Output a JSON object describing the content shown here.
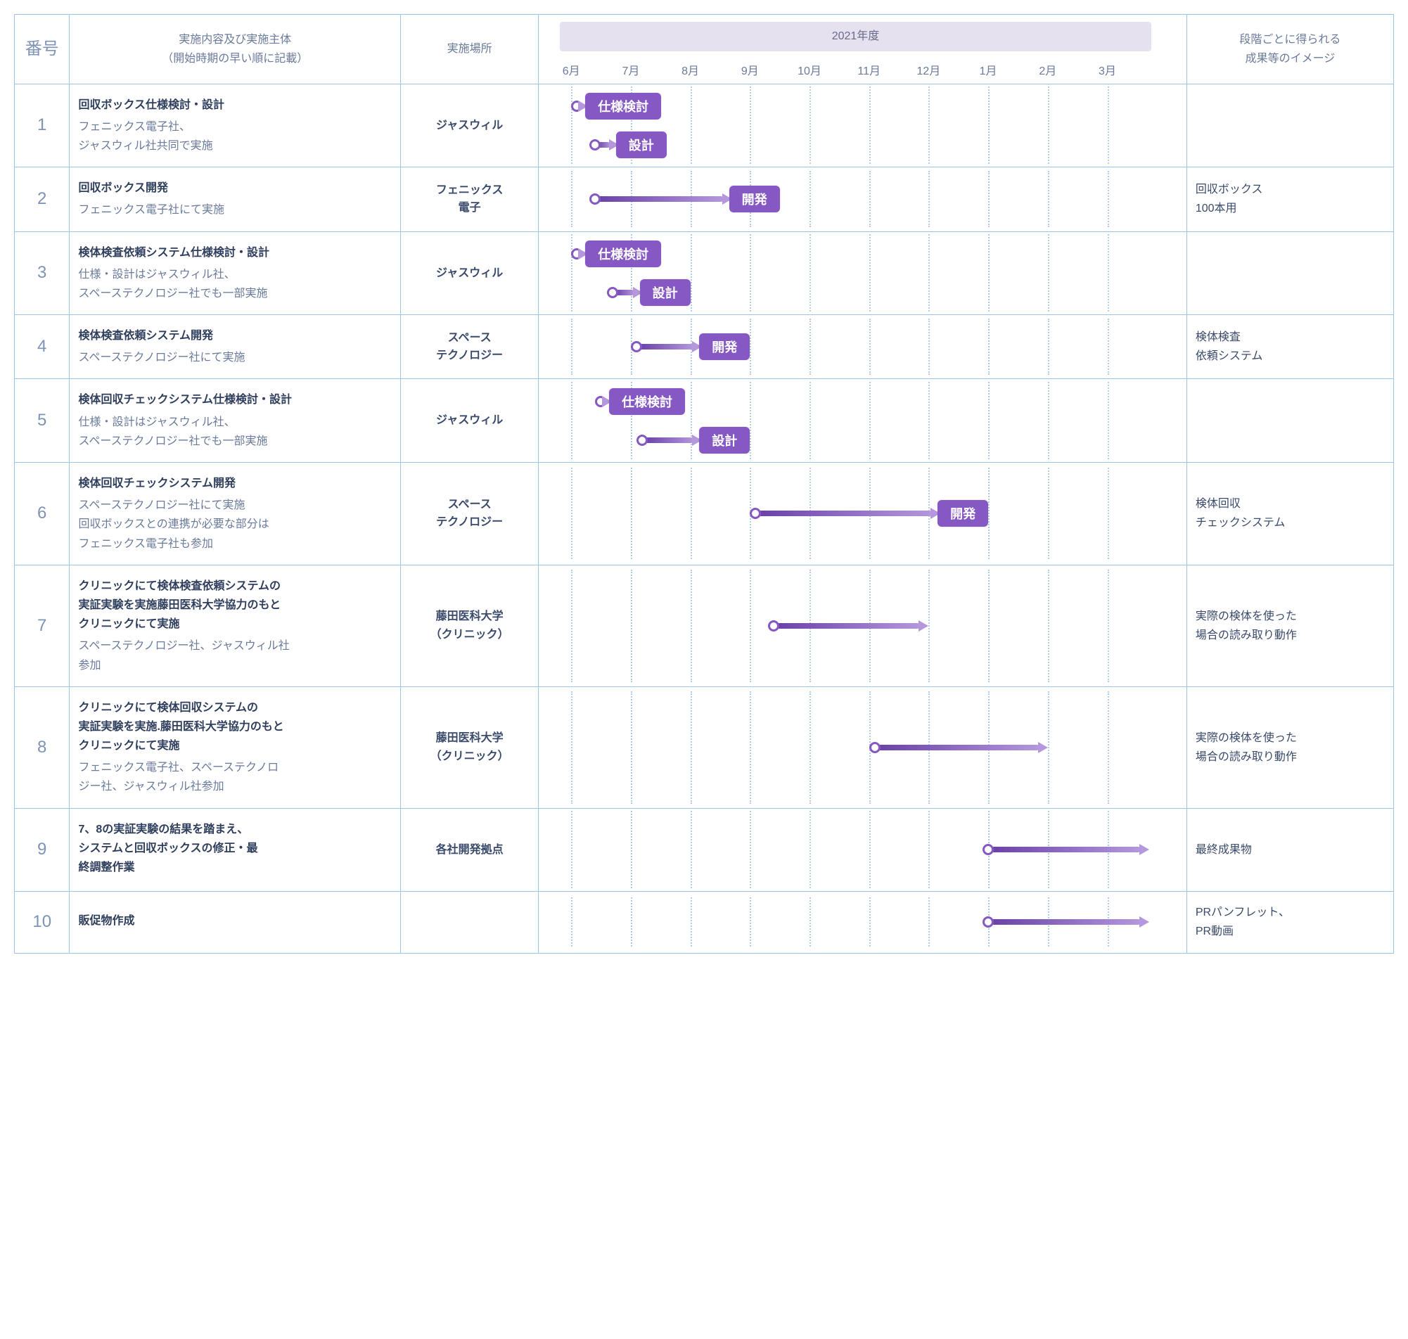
{
  "colors": {
    "border": "#9dc3e6",
    "grid": "#9dc3e6",
    "bar_primary": "#8558c4",
    "bar_light": "#b497dd",
    "gradient_start": "#6b41a8",
    "gradient_end": "#b497dd",
    "text_muted": "#6a7a9b",
    "text_strong": "#2f3e5c",
    "year_bg": "#e5e1ef"
  },
  "layout": {
    "timeline_start_month": 6,
    "timeline_months_count": 10,
    "month_pct_step": 9.2,
    "left_margin_pct": 5,
    "col_widths_pct": {
      "num": 4,
      "desc": 24,
      "place": 10,
      "chart": 47,
      "result": 15
    }
  },
  "headers": {
    "num": "番号",
    "desc1": "実施内容及び実施主体",
    "desc2": "（開始時期の早い順に記載）",
    "place": "実施場所",
    "year": "2021年度",
    "result1": "段階ごとに得られる",
    "result2": "成果等のイメージ"
  },
  "months": [
    "6月",
    "7月",
    "8月",
    "9月",
    "10月",
    "11月",
    "12月",
    "1月",
    "2月",
    "3月"
  ],
  "rows": [
    {
      "num": "1",
      "title": "回収ボックス仕様検討・設計",
      "sub": "フェニックス電子社、\nジャスウィル社共同で実施",
      "place": "ジャスウィル",
      "result": "",
      "bars": [
        {
          "start": 6,
          "end": 7,
          "label": "仕様検討",
          "row": 0,
          "style": "label"
        },
        {
          "start": 6.3,
          "end": 7.6,
          "label": "設計",
          "row": 1,
          "style": "label"
        }
      ],
      "height": 110
    },
    {
      "num": "2",
      "title": "回収ボックス開発",
      "sub": "フェニックス電子社にて実施",
      "place": "フェニックス\n電子",
      "result": "回収ボックス\n100本用",
      "bars": [
        {
          "start": 6.3,
          "end": 9.5,
          "label": "開発",
          "row": 0,
          "style": "label"
        }
      ],
      "height": 80
    },
    {
      "num": "3",
      "title": "検体検査依頼システム仕様検討・設計",
      "sub": "仕様・設計はジャスウィル社、\nスペーステクノロジー社でも一部実施",
      "place": "ジャスウィル",
      "result": "",
      "bars": [
        {
          "start": 6,
          "end": 7,
          "label": "仕様検討",
          "row": 0,
          "style": "label"
        },
        {
          "start": 6.6,
          "end": 8,
          "label": "設計",
          "row": 1,
          "style": "label"
        }
      ],
      "height": 110
    },
    {
      "num": "4",
      "title": "検体検査依頼システム開発",
      "sub": "スペーステクノロジー社にて実施",
      "place": "スペース\nテクノロジー",
      "result": "検体検査\n依頼システム",
      "bars": [
        {
          "start": 7,
          "end": 9,
          "label": "開発",
          "row": 0,
          "style": "label"
        }
      ],
      "height": 80
    },
    {
      "num": "5",
      "title": "検体回収チェックシステム仕様検討・設計",
      "sub": "仕様・設計はジャスウィル社、\nスペーステクノロジー社でも一部実施",
      "place": "ジャスウィル",
      "result": "",
      "bars": [
        {
          "start": 6.4,
          "end": 7.5,
          "label": "仕様検討",
          "row": 0,
          "style": "label"
        },
        {
          "start": 7.1,
          "end": 9,
          "label": "設計",
          "row": 1,
          "style": "label"
        }
      ],
      "height": 110
    },
    {
      "num": "6",
      "title": "検体回収チェックシステム開発",
      "sub": "スペーステクノロジー社にて実施\n回収ボックスとの連携が必要な部分は\nフェニックス電子社も参加",
      "place": "スペース\nテクノロジー",
      "result": "検体回収\nチェックシステム",
      "bars": [
        {
          "start": 9,
          "end": 13,
          "label": "開発",
          "row": 0,
          "style": "label"
        }
      ],
      "height": 130
    },
    {
      "num": "7",
      "title": "クリニックにて検体検査依頼システムの\n実証実験を実施藤田医科大学協力のもと\nクリニックにて実施",
      "sub": "スペーステクノロジー社、ジャスウィル社\n参加",
      "place": "藤田医科大学\n（クリニック）",
      "result": "実際の検体を使った\n場合の読み取り動作",
      "bars": [
        {
          "start": 9.3,
          "end": 12,
          "label": "",
          "row": 0,
          "style": "arrow"
        }
      ],
      "height": 160
    },
    {
      "num": "8",
      "title": "クリニックにて検体回収システムの\n実証実験を実施.藤田医科大学協力のもと\nクリニックにて実施",
      "sub": "フェニックス電子社、スペーステクノロ\nジー社、ジャスウィル社参加",
      "place": "藤田医科大学\n（クリニック）",
      "result": "実際の検体を使った\n場合の読み取り動作",
      "bars": [
        {
          "start": 11.0,
          "end": 14,
          "label": "",
          "row": 0,
          "style": "arrow"
        }
      ],
      "height": 160
    },
    {
      "num": "9",
      "title": "7、8の実証実験の結果を踏まえ、\nシステムと回収ボックスの修正・最\n終調整作業",
      "sub": "",
      "place": "各社開発拠点",
      "result": "最終成果物",
      "bars": [
        {
          "start": 12.9,
          "end": 15.7,
          "label": "",
          "row": 0,
          "style": "arrow"
        }
      ],
      "height": 110
    },
    {
      "num": "10",
      "title": "販促物作成",
      "sub": "",
      "place": "",
      "result": "PRパンフレット、\nPR動画",
      "bars": [
        {
          "start": 12.9,
          "end": 15.7,
          "label": "",
          "row": 0,
          "style": "arrow"
        }
      ],
      "height": 70
    }
  ]
}
